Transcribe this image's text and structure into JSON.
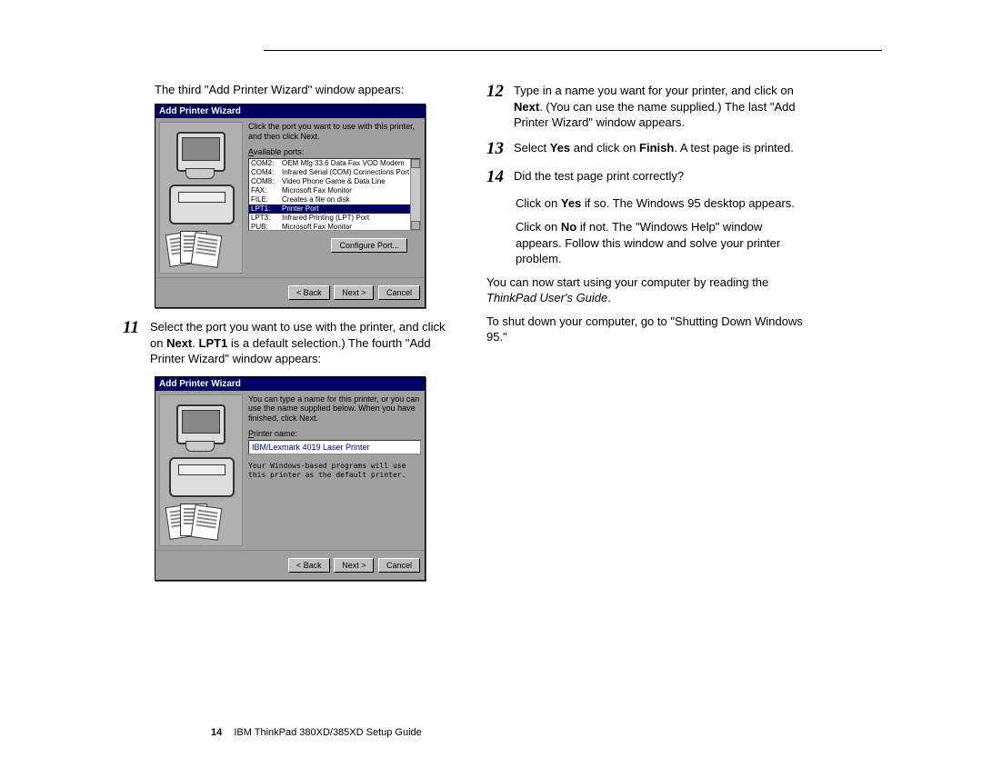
{
  "intro_third": "The third \"Add Printer Wizard\" window appears:",
  "dialog1": {
    "title": "Add Printer Wizard",
    "instruction": "Click the port you want to use with this printer, and then click Next.",
    "ports_label": "Available ports:",
    "ports": [
      {
        "id": "COM2:",
        "desc": "OEM Mfg 33.6 Data Fax VOD Modem"
      },
      {
        "id": "COM4:",
        "desc": "Infrared Serial (COM) Connections Port"
      },
      {
        "id": "COM8:",
        "desc": "Video Phone Game & Data Line"
      },
      {
        "id": "FAX:",
        "desc": "Microsoft Fax Monitor"
      },
      {
        "id": "FILE:",
        "desc": "Creates a file on disk"
      },
      {
        "id": "LPT1:",
        "desc": "Printer Port"
      },
      {
        "id": "LPT3:",
        "desc": "Infrared Printing (LPT) Port"
      },
      {
        "id": "PUB:",
        "desc": "Microsoft Fax Monitor"
      }
    ],
    "selected_index": 5,
    "configure_btn": "Configure Port...",
    "back_btn": "< Back",
    "next_btn": "Next >",
    "cancel_btn": "Cancel"
  },
  "step11": {
    "num": "11",
    "text_parts": [
      "Select the port you want to use with the printer, and click on ",
      "Next",
      ".  ",
      "LPT1",
      " is a default selection.)  The fourth \"Add Printer Wizard\" window appears:"
    ]
  },
  "dialog2": {
    "title": "Add Printer Wizard",
    "instruction": "You can type a name for this printer, or you can use the name supplied below. When you have finished, click Next.",
    "name_label": "Printer name:",
    "name_value": "IBM/Lexmark 4019 Laser Printer",
    "default_text": "Your Windows-based programs will use this printer as the default printer.",
    "back_btn": "< Back",
    "next_btn": "Next >",
    "cancel_btn": "Cancel"
  },
  "step12": {
    "num": "12",
    "text_parts": [
      "Type in a name you want for your printer, and click on ",
      "Next",
      ".  (You can use the name supplied.)  The last \"Add Printer Wizard\" window appears."
    ]
  },
  "step13": {
    "num": "13",
    "text_parts": [
      "Select ",
      "Yes",
      " and click on ",
      "Finish",
      ".  A test page is printed."
    ]
  },
  "step14": {
    "num": "14",
    "text": "Did the test page print correctly?",
    "yes_parts": [
      "Click on ",
      "Yes",
      " if so.  The Windows 95 desktop appears."
    ],
    "no_parts": [
      "Click on ",
      "No",
      " if not.  The \"Windows Help\" window appears.  Follow this window and solve your printer problem."
    ]
  },
  "closing1_parts": [
    "You can now start using your computer by reading the ",
    "ThinkPad User's Guide",
    "."
  ],
  "closing2": "To shut down your computer, go to \"Shutting Down Windows 95.\"",
  "footer": {
    "page": "14",
    "title": "IBM ThinkPad 380XD/385XD Setup Guide"
  }
}
